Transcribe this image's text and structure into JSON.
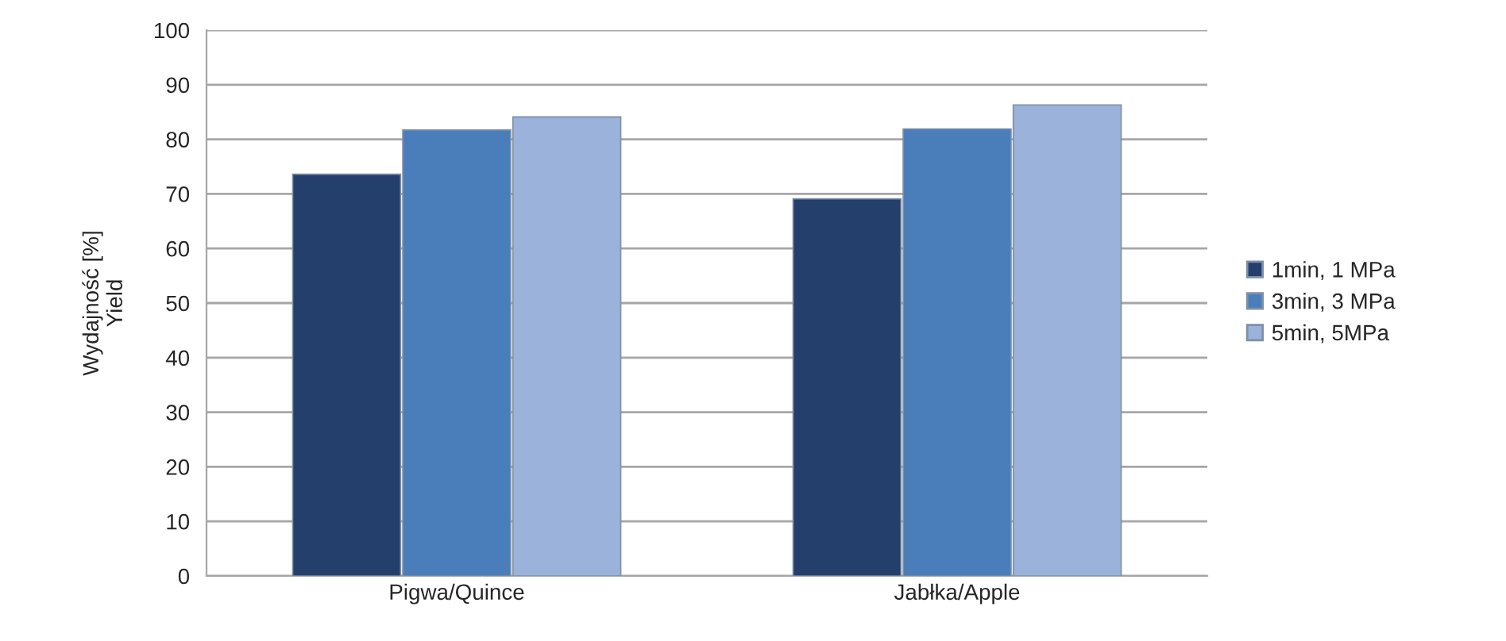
{
  "chart_data": {
    "type": "bar",
    "ylabel": "Wydajność [%]\nYield",
    "categories": [
      "Pigwa/Quince",
      "Jabłka/Apple"
    ],
    "series": [
      {
        "name": "1min, 1 MPa",
        "color": "#243f6b",
        "values": [
          73.6,
          69.1
        ]
      },
      {
        "name": "3min, 3 MPa",
        "color": "#4a7ebb",
        "values": [
          81.7,
          81.9
        ]
      },
      {
        "name": "5min, 5MPa",
        "color": "#9bb2da",
        "values": [
          84.1,
          86.3
        ]
      }
    ],
    "ylim": [
      0,
      100
    ],
    "yticks": [
      0,
      10,
      20,
      30,
      40,
      50,
      60,
      70,
      80,
      90,
      100
    ],
    "grid": "y",
    "legend": "right"
  }
}
